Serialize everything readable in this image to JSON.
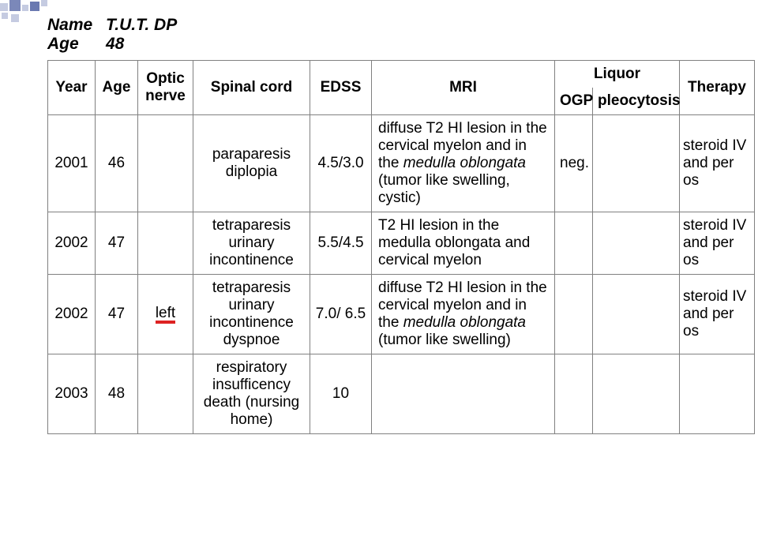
{
  "header": {
    "name_label": "Name",
    "name_value": "T.U.T.   DP",
    "age_label": "Age",
    "age_value": "48"
  },
  "columns": {
    "year": "Year",
    "age": "Age",
    "optic": "Optic nerve",
    "spinal": "Spinal cord",
    "edss": "EDSS",
    "mri": "MRI",
    "liquor": "Liquor",
    "ogp": "OGP",
    "pleo": "pleocytosis",
    "therapy": "Therapy"
  },
  "rows": [
    {
      "year": "2001",
      "age": "46",
      "optic": "",
      "spinal": "paraparesis diplopia",
      "edss": "4.5/3.0",
      "mri_pre": "diffuse T2 HI lesion in the cervical myelon and in the ",
      "mri_italic": "medulla oblongata",
      "mri_post": " (tumor like swelling, cystic)",
      "ogp": "neg.",
      "pleo": "",
      "therapy": "steroid IV and per os"
    },
    {
      "year": "2002",
      "age": "47",
      "optic": "",
      "spinal": "tetraparesis urinary incontinence",
      "edss": "5.5/4.5",
      "mri_pre": " T2 HI lesion in the medulla oblongata and cervical myelon",
      "mri_italic": "",
      "mri_post": "",
      "ogp": "",
      "pleo": "",
      "therapy": "steroid IV and per os"
    },
    {
      "year": "2002",
      "age": "47",
      "optic": "left",
      "optic_underline": true,
      "spinal": "tetraparesis urinary incontinence dyspnoe",
      "edss": "7.0/ 6.5",
      "mri_pre": "diffuse T2 HI lesion in the cervical myelon and in the ",
      "mri_italic": "medulla oblongata",
      "mri_post": " (tumor like swelling)",
      "ogp": "",
      "pleo": "",
      "therapy": "steroid IV and per os"
    },
    {
      "year": "2003",
      "age": "48",
      "optic": "",
      "spinal": "respiratory insufficency death (nursing home)",
      "edss": "10",
      "mri_pre": "",
      "mri_italic": "",
      "mri_post": "",
      "ogp": "",
      "pleo": "",
      "therapy": ""
    }
  ],
  "styling": {
    "border_color": "#808080",
    "underline_color": "#d22",
    "deco_color": "#5a6aa8",
    "font_size_body": 19,
    "font_size_header": 21
  }
}
